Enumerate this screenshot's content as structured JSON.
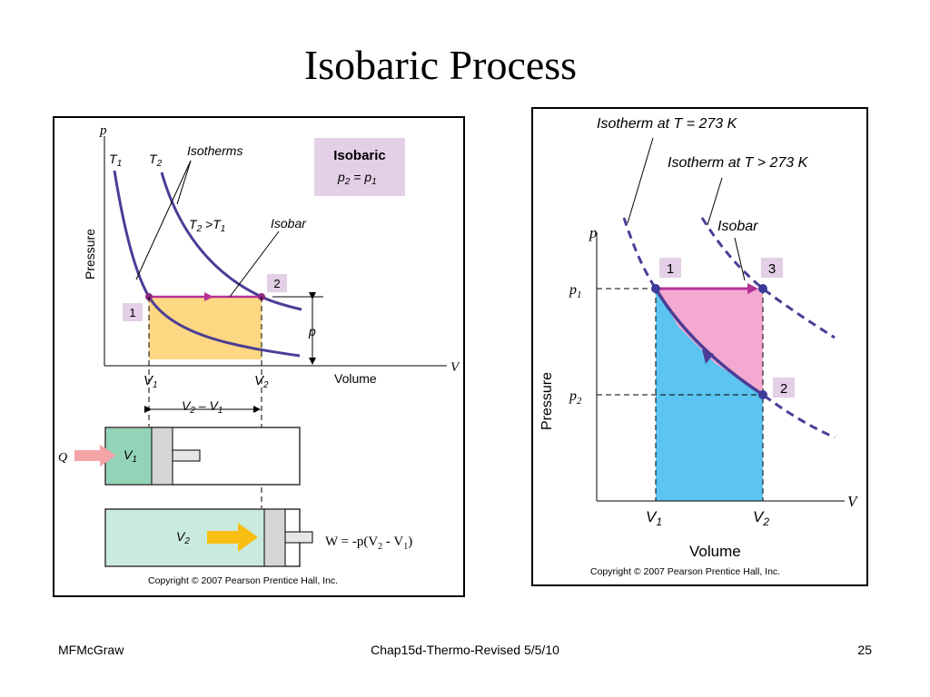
{
  "title": "Isobaric Process",
  "left_figure": {
    "axis_p": "p",
    "axis_v": "V",
    "t1": "T",
    "t1_sub": "1",
    "t2": "T",
    "t2_sub": "2",
    "isotherms_label": "Isotherms",
    "t2_gt_t1": "T",
    "t2_gt_t1_sub_a": "2",
    "t2_gt_t1_mid": " >T",
    "t2_gt_t1_sub_b": "1",
    "isobar_label": "Isobar",
    "box_title": "Isobaric",
    "box_eq": "p",
    "box_eq_sub_a": "2",
    "box_eq_mid": " = p",
    "box_eq_sub_b": "1",
    "point_1": "1",
    "point_2": "2",
    "pressure_label": "Pressure",
    "volume_label": "Volume",
    "p_label": "p",
    "v1": "V",
    "v1_sub": "1",
    "v2": "V",
    "v2_sub": "2",
    "dv": "V",
    "dv_sub_a": "2",
    "dv_mid": " – V",
    "dv_sub_b": "1",
    "q_label": "Q",
    "cyl1_label": "V",
    "cyl1_sub": "1",
    "cyl2_label": "V",
    "cyl2_sub": "2",
    "copyright": "Copyright © 2007 Pearson Prentice Hall, Inc."
  },
  "right_figure": {
    "isotherm_273": "Isotherm at T = 273 K",
    "isotherm_gt_273": "Isotherm at T > 273 K",
    "isobar_label": "Isobar",
    "axis_p": "p",
    "axis_v": "V",
    "p1": "p",
    "p1_sub": "1",
    "p2": "p",
    "p2_sub": "2",
    "point_1": "1",
    "point_2": "2",
    "point_3": "3",
    "pressure_label": "Pressure",
    "volume_label": "Volume",
    "v1": "V",
    "v1_sub": "1",
    "v2": "V",
    "v2_sub": "2",
    "copyright": "Copyright © 2007 Pearson Prentice Hall, Inc."
  },
  "work_equation": {
    "lhs": "W = -p(V",
    "sub_a": "2",
    "mid": " - V",
    "sub_b": "1",
    "end": ")"
  },
  "footer": {
    "left": "MFMcGraw",
    "center": "Chap15d-Thermo-Revised 5/5/10",
    "right": "25"
  },
  "colors": {
    "curve": "#4b3d96",
    "isobar_arrow": "#b43296",
    "work_area": "#fdd781",
    "label_box": "#e3cfe6",
    "cylinder_v1": "#93d3b7",
    "cylinder_v2": "#c9ebde",
    "heat_arrow": "#f4a3a6",
    "push_arrow": "#f8be12",
    "pink_region": "#f3a9d0",
    "blue_region": "#5bc4f0"
  }
}
